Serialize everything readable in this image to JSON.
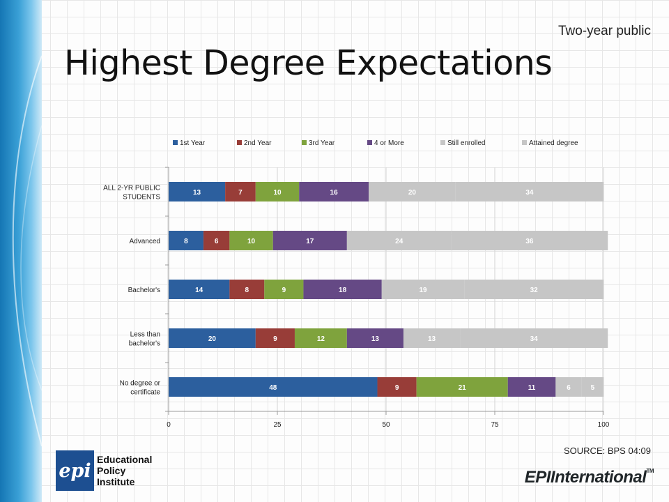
{
  "header": {
    "subtitle": "Two-year public",
    "title": "Highest Degree Expectations"
  },
  "footer": {
    "source": "SOURCE: BPS 04:09",
    "logo_left": {
      "mark": "epi",
      "lines": [
        "Educational",
        "Policy",
        "Institute"
      ]
    },
    "logo_right": {
      "text": "EPIInternational",
      "tm": "TM"
    }
  },
  "chart_data": {
    "type": "bar",
    "orientation": "horizontal",
    "stacked": true,
    "categories": [
      "ALL 2-YR PUBLIC STUDENTS",
      "Advanced",
      "Bachelor's",
      "Less than bachelor's",
      "No degree or certificate"
    ],
    "series": [
      {
        "name": "1st Year",
        "color": "#2c5f9e",
        "values": [
          13,
          8,
          14,
          20,
          48
        ]
      },
      {
        "name": "2nd Year",
        "color": "#983d38",
        "values": [
          7,
          6,
          8,
          9,
          9
        ]
      },
      {
        "name": "3rd Year",
        "color": "#7fa33d",
        "values": [
          10,
          10,
          9,
          12,
          21
        ]
      },
      {
        "name": "4 or More",
        "color": "#654985",
        "values": [
          16,
          17,
          18,
          13,
          11
        ]
      },
      {
        "name": "Still enrolled",
        "color": "#c6c6c6",
        "values": [
          20,
          24,
          19,
          13,
          6
        ]
      },
      {
        "name": "Attained degree",
        "color": "#c6c6c6",
        "values": [
          34,
          36,
          32,
          34,
          5
        ]
      }
    ],
    "xlim": [
      0,
      100
    ],
    "xticks": [
      0,
      25,
      50,
      75,
      100
    ],
    "grid": true,
    "legend": "top"
  }
}
